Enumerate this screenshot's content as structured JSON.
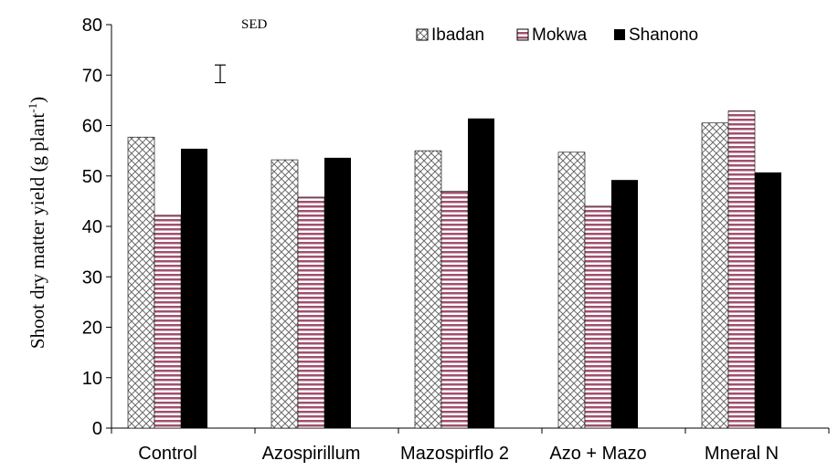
{
  "chart_data": {
    "type": "bar",
    "ylabel_main": "Shoot dry matter yield (g plant",
    "ylabel_sup": "-1",
    "ylabel_close": ")",
    "xlabel": "",
    "title": "",
    "ylim": [
      0,
      80
    ],
    "yticks": [
      "0",
      "10",
      "20",
      "30",
      "40",
      "50",
      "60",
      "70",
      "80"
    ],
    "categories": [
      "Control",
      "Azospirillum",
      "Mazospirflo 2",
      "Azo + Mazo",
      "Mneral N"
    ],
    "series": [
      {
        "name": "Ibadan",
        "values": [
          57.7,
          53.2,
          55.0,
          54.7,
          60.5
        ],
        "pattern": "crosshatch",
        "color": "#8a8a8a"
      },
      {
        "name": "Mokwa",
        "values": [
          42.2,
          45.8,
          47.0,
          44.0,
          62.9
        ],
        "pattern": "horizontal-stripes",
        "color": "#a0506e"
      },
      {
        "name": "Shanono",
        "values": [
          55.4,
          53.6,
          61.4,
          49.2,
          50.7
        ],
        "pattern": "solid",
        "color": "#000000"
      }
    ],
    "legend_placement": "top-right",
    "legend_labels": [
      "Ibadan",
      "Mokwa",
      "Shanono"
    ],
    "annotation": {
      "text": "SED",
      "error_bar": [
        68.5,
        72.0
      ]
    },
    "grid": false
  }
}
